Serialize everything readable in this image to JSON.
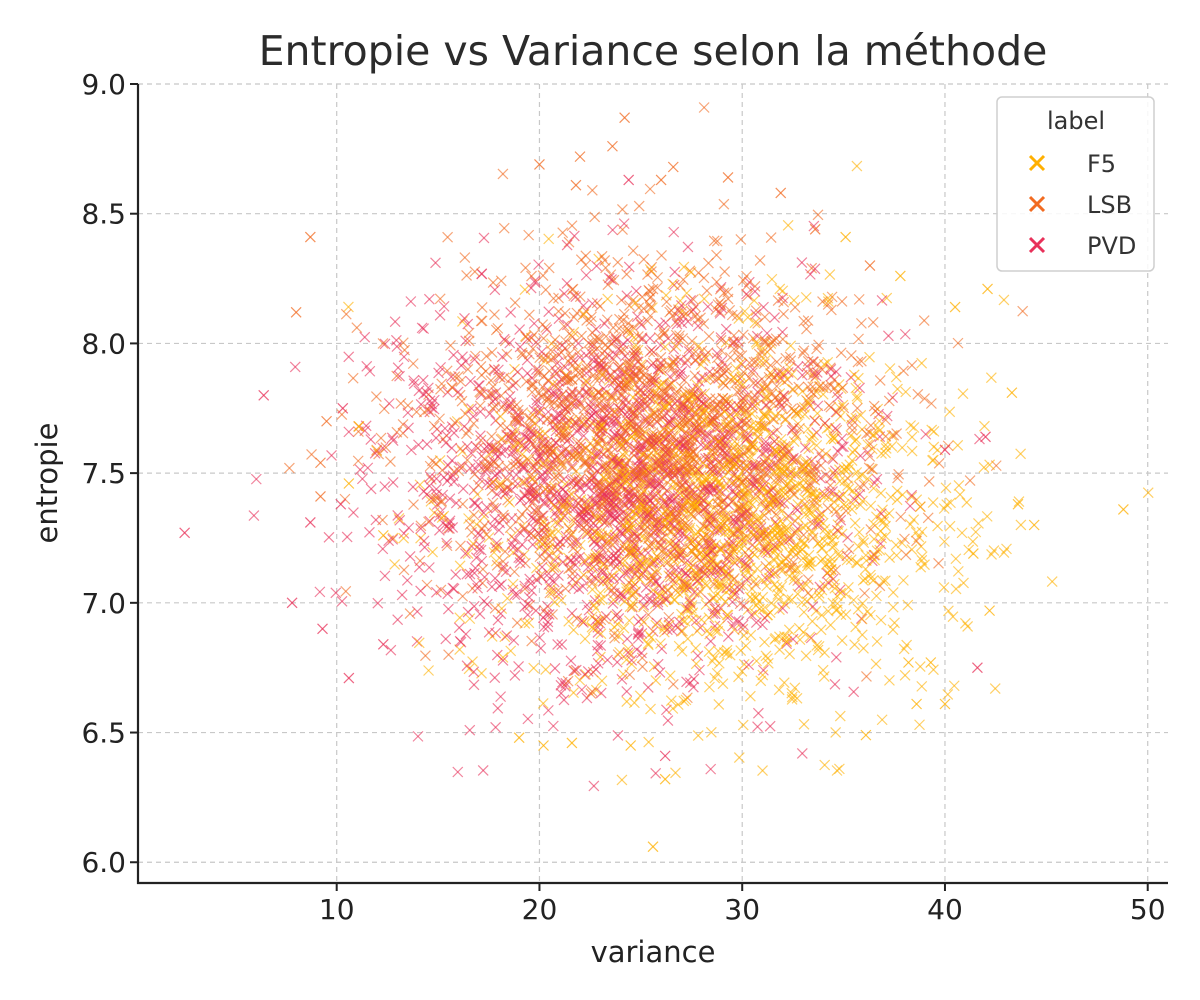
{
  "chart_data": {
    "type": "scatter",
    "title": "Entropie vs Variance selon la méthode",
    "xlabel": "variance",
    "ylabel": "entropie",
    "xlim": [
      0.2,
      51
    ],
    "ylim": [
      5.92,
      9.0
    ],
    "xticks": [
      10,
      20,
      30,
      40,
      50
    ],
    "xtick_labels": [
      "10",
      "20",
      "30",
      "40",
      "50"
    ],
    "yticks": [
      6.0,
      6.5,
      7.0,
      7.5,
      8.0,
      8.5,
      9.0
    ],
    "ytick_labels": [
      "6.0",
      "6.5",
      "7.0",
      "7.5",
      "8.0",
      "8.5",
      "9.0"
    ],
    "grid": true,
    "marker": "x",
    "legend": {
      "title": "label",
      "placement": "top-right"
    },
    "series": [
      {
        "name": "F5",
        "color": "#FFB000",
        "center": {
          "x": 29.0,
          "y": 7.35
        },
        "spread": {
          "x": 5.6,
          "y": 0.34
        },
        "points_listed": [
          {
            "x": 48.8,
            "y": 7.36
          },
          {
            "x": 44.4,
            "y": 7.3
          },
          {
            "x": 43.6,
            "y": 7.38
          },
          {
            "x": 43.3,
            "y": 7.81
          },
          {
            "x": 42.2,
            "y": 6.97
          },
          {
            "x": 42.1,
            "y": 8.21
          },
          {
            "x": 41.4,
            "y": 7.19
          },
          {
            "x": 40.5,
            "y": 8.14
          },
          {
            "x": 40.0,
            "y": 6.61
          },
          {
            "x": 38.6,
            "y": 6.61
          },
          {
            "x": 39.3,
            "y": 6.77
          },
          {
            "x": 38.2,
            "y": 6.77
          },
          {
            "x": 37.8,
            "y": 8.26
          },
          {
            "x": 36.1,
            "y": 6.49
          },
          {
            "x": 35.1,
            "y": 8.41
          },
          {
            "x": 26.2,
            "y": 6.32
          },
          {
            "x": 25.6,
            "y": 6.06
          },
          {
            "x": 20.2,
            "y": 6.45
          },
          {
            "x": 19.0,
            "y": 6.48
          },
          {
            "x": 21.6,
            "y": 6.46
          },
          {
            "x": 24.5,
            "y": 6.45
          },
          {
            "x": 11.1,
            "y": 7.68
          },
          {
            "x": 10.6,
            "y": 7.46
          },
          {
            "x": 12.3,
            "y": 7.26
          }
        ]
      },
      {
        "name": "LSB",
        "color": "#F26B21",
        "center": {
          "x": 25.5,
          "y": 7.65
        },
        "spread": {
          "x": 5.4,
          "y": 0.33
        },
        "points_listed": [
          {
            "x": 24.2,
            "y": 8.87
          },
          {
            "x": 23.6,
            "y": 8.76
          },
          {
            "x": 22.0,
            "y": 8.72
          },
          {
            "x": 20.0,
            "y": 8.69
          },
          {
            "x": 26.6,
            "y": 8.68
          },
          {
            "x": 29.3,
            "y": 8.64
          },
          {
            "x": 26.0,
            "y": 8.63
          },
          {
            "x": 21.8,
            "y": 8.61
          },
          {
            "x": 31.9,
            "y": 8.58
          },
          {
            "x": 8.7,
            "y": 8.41
          },
          {
            "x": 8.0,
            "y": 8.12
          },
          {
            "x": 9.5,
            "y": 7.7
          },
          {
            "x": 9.2,
            "y": 7.54
          },
          {
            "x": 9.2,
            "y": 7.41
          },
          {
            "x": 33.6,
            "y": 8.44
          },
          {
            "x": 36.3,
            "y": 8.3
          }
        ]
      },
      {
        "name": "PVD",
        "color": "#E8315A",
        "center": {
          "x": 23.5,
          "y": 7.45
        },
        "spread": {
          "x": 5.6,
          "y": 0.36
        },
        "points_listed": [
          {
            "x": 2.5,
            "y": 7.27
          },
          {
            "x": 6.4,
            "y": 7.8
          },
          {
            "x": 7.8,
            "y": 7.0
          },
          {
            "x": 8.7,
            "y": 7.31
          },
          {
            "x": 9.3,
            "y": 6.9
          },
          {
            "x": 10.6,
            "y": 6.71
          },
          {
            "x": 10.3,
            "y": 7.75
          },
          {
            "x": 10.2,
            "y": 7.38
          },
          {
            "x": 24.4,
            "y": 8.63
          },
          {
            "x": 26.2,
            "y": 6.41
          },
          {
            "x": 41.6,
            "y": 6.75
          },
          {
            "x": 42.0,
            "y": 7.64
          },
          {
            "x": 40.0,
            "y": 7.59
          },
          {
            "x": 12.3,
            "y": 6.84
          }
        ]
      }
    ]
  }
}
